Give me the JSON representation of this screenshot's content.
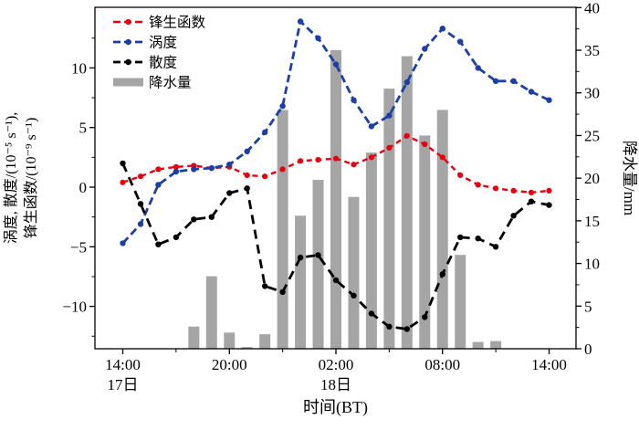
{
  "figure_title": "",
  "legend": {
    "items": [
      {
        "label": "锋生函数",
        "type": "line",
        "color": "#e8000f"
      },
      {
        "label": "涡度",
        "type": "line",
        "color": "#1d3fa5"
      },
      {
        "label": "散度",
        "type": "line",
        "color": "#000000"
      },
      {
        "label": "降水量",
        "type": "bar",
        "color": "#a5a5a5"
      }
    ]
  },
  "axes": {
    "left_label_line1": "涡度, 散度/(10⁻⁵ s⁻¹),",
    "left_label_line2": "锋生函数/(10⁻⁹ s⁻¹)",
    "right_label": "降水量/mm",
    "x_label": "时间(BT)"
  },
  "colors": {
    "frontogenesis": "#e8000f",
    "vorticity": "#1d3fa5",
    "divergence": "#000000",
    "precipitation_bar": "#a5a5a5",
    "spine": "#000000",
    "background": "#ffffff"
  },
  "chart_data": {
    "type": "composite (dashed marker lines + bar)",
    "title": "",
    "xlabel": "时间(BT)",
    "ylabel_left": "涡度, 散度/(10⁻⁵ s⁻¹), 锋生函数/(10⁻⁹ s⁻¹)",
    "ylabel_right": "降水量/mm",
    "grid": false,
    "legend_position": "upper-left-inside",
    "times": [
      "14:00",
      "15:00",
      "16:00",
      "17:00",
      "18:00",
      "19:00",
      "20:00",
      "21:00",
      "22:00",
      "23:00",
      "00:00",
      "01:00",
      "02:00",
      "03:00",
      "04:00",
      "05:00",
      "06:00",
      "07:00",
      "08:00",
      "09:00",
      "10:00",
      "11:00",
      "12:00",
      "13:00",
      "14:00"
    ],
    "series": [
      {
        "name": "锋生函数",
        "axis": "left",
        "unit": "10⁻⁹ s⁻¹",
        "color": "#e8000f",
        "values": [
          0.4,
          0.9,
          1.5,
          1.7,
          1.8,
          1.6,
          1.7,
          1.0,
          0.9,
          1.5,
          2.2,
          2.3,
          2.4,
          1.9,
          2.5,
          3.3,
          4.3,
          3.6,
          2.5,
          1.0,
          0.2,
          -0.1,
          -0.3,
          -0.45,
          -0.3
        ]
      },
      {
        "name": "涡度",
        "axis": "left",
        "unit": "10⁻⁵ s⁻¹",
        "color": "#1d3fa5",
        "values": [
          -4.7,
          -3.1,
          0.2,
          1.3,
          1.5,
          1.6,
          1.9,
          3.0,
          4.6,
          6.8,
          13.9,
          12.5,
          10.3,
          7.3,
          5.1,
          6.0,
          8.8,
          11.6,
          13.3,
          12.2,
          10.0,
          8.9,
          8.9,
          8.0,
          7.3
        ]
      },
      {
        "name": "散度",
        "axis": "left",
        "unit": "10⁻⁵ s⁻¹",
        "color": "#000000",
        "values": [
          2.0,
          -1.4,
          -4.8,
          -4.2,
          -2.7,
          -2.5,
          -0.5,
          -0.1,
          -8.3,
          -8.8,
          -5.9,
          -5.7,
          -7.8,
          -9.1,
          -10.6,
          -11.7,
          -11.9,
          -10.9,
          -7.3,
          -4.2,
          -4.3,
          -5.0,
          -2.4,
          -1.2,
          -1.5
        ]
      }
    ],
    "bars": {
      "name": "降水量",
      "axis": "right",
      "unit": "mm",
      "color": "#a5a5a5",
      "values": [
        0,
        0,
        0,
        0,
        2.6,
        8.5,
        1.9,
        0.2,
        1.7,
        28,
        15.6,
        19.8,
        35,
        17.8,
        23,
        30.5,
        34.3,
        25,
        28,
        11,
        0.8,
        0.9,
        0,
        0,
        0
      ]
    },
    "left_axis": {
      "tick_labels": [
        "10",
        "5",
        "0",
        "−5",
        "−10"
      ],
      "tick_values": [
        10,
        5,
        0,
        -5,
        -10
      ],
      "minor_step": 2.5,
      "ylim": [
        -13.5,
        15.1
      ]
    },
    "right_axis": {
      "tick_labels": [
        "0",
        "5",
        "10",
        "15",
        "20",
        "25",
        "30",
        "35",
        "40"
      ],
      "tick_values": [
        0,
        5,
        10,
        15,
        20,
        25,
        30,
        35,
        40
      ],
      "minor_step": 2.5,
      "ylim": [
        0,
        40
      ]
    },
    "x_axis": {
      "major_ticks": [
        {
          "hour": 0,
          "text": "14:00"
        },
        {
          "hour": 6,
          "text": "20:00"
        },
        {
          "hour": 12,
          "text": "02:00"
        },
        {
          "hour": 18,
          "text": "08:00"
        },
        {
          "hour": 24,
          "text": "14:00"
        }
      ],
      "minor_tick_hours": [
        3,
        9,
        15,
        21
      ],
      "day_labels": [
        {
          "hour": 0,
          "text": "17日"
        },
        {
          "hour": 12,
          "text": "18日"
        }
      ],
      "span_hours": 24
    }
  }
}
